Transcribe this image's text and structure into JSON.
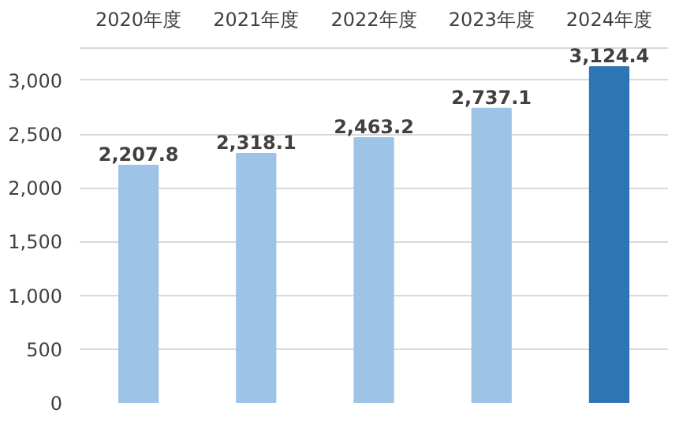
{
  "chart_data": {
    "type": "bar",
    "categories": [
      "2020年度",
      "2021年度",
      "2022年度",
      "2023年度",
      "2024年度"
    ],
    "values": [
      2207.8,
      2318.1,
      2463.2,
      2737.1,
      3124.4
    ],
    "colors": [
      "#9dc3e6",
      "#9dc3e6",
      "#9dc3e6",
      "#9dc3e6",
      "#2e75b6"
    ],
    "ylim": [
      0,
      3300
    ],
    "yticks": [
      {
        "value": 0,
        "label": "0"
      },
      {
        "value": 500,
        "label": "500"
      },
      {
        "value": 1000,
        "label": "1,000"
      },
      {
        "value": 1500,
        "label": "1,500"
      },
      {
        "value": 2000,
        "label": "2,000"
      },
      {
        "value": 2500,
        "label": "2,500"
      },
      {
        "value": 3000,
        "label": "3,000"
      }
    ],
    "value_labels": [
      "2,207.8",
      "2,318.1",
      "2,463.2",
      "2,737.1",
      "3,124.4"
    ],
    "grid": "y"
  }
}
